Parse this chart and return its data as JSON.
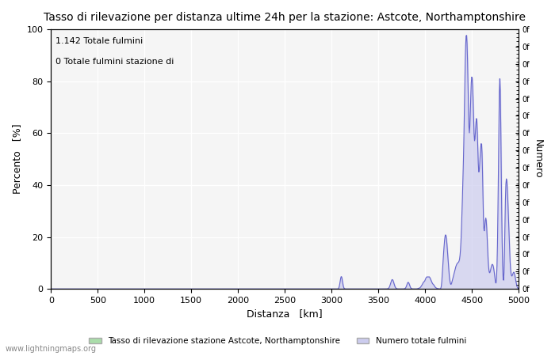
{
  "title": "Tasso di rilevazione per distanza ultime 24h per la stazione: Astcote, Northamptonshire",
  "xlabel": "Distanza   [km]",
  "ylabel_left": "Percento   [%]",
  "ylabel_right": "Numero",
  "annotation_line1": "1.142 Totale fulmini",
  "annotation_line2": "0 Totale fulmini stazione di",
  "legend_label1": "Tasso di rilevazione stazione Astcote, Northamptonshire",
  "legend_label2": "Numero totale fulmini",
  "watermark": "www.lightningmaps.org",
  "xlim": [
    0,
    5000
  ],
  "ylim_left": [
    0,
    100
  ],
  "background_color": "#ffffff",
  "plot_bg_color": "#f5f5f5",
  "grid_color": "#ffffff",
  "line_color": "#6666cc",
  "fill_color": "#ccccee",
  "fill_alpha": 0.7,
  "right_axis_ticks": [
    "0f",
    "0f",
    "0f",
    "0f",
    "0f",
    "0f",
    "0f",
    "0f",
    "0f",
    "0f",
    "0f",
    "0f",
    "0f",
    "0f",
    "0f",
    "0f"
  ],
  "x_ticks": [
    0,
    500,
    1000,
    1500,
    2000,
    2500,
    3000,
    3500,
    4000,
    4500,
    5000
  ]
}
